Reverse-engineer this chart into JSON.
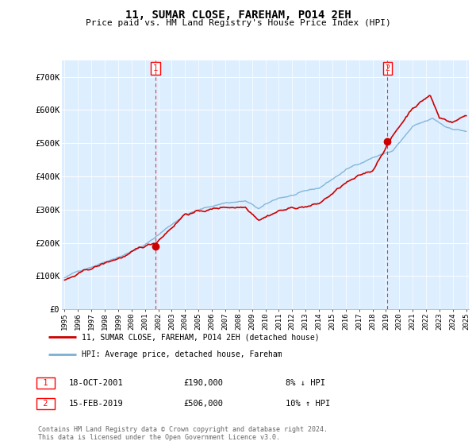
{
  "title": "11, SUMAR CLOSE, FAREHAM, PO14 2EH",
  "subtitle": "Price paid vs. HM Land Registry's House Price Index (HPI)",
  "legend_line1": "11, SUMAR CLOSE, FAREHAM, PO14 2EH (detached house)",
  "legend_line2": "HPI: Average price, detached house, Fareham",
  "annotation1_label": "1",
  "annotation1_date": "18-OCT-2001",
  "annotation1_price": "£190,000",
  "annotation1_hpi": "8% ↓ HPI",
  "annotation2_label": "2",
  "annotation2_date": "15-FEB-2019",
  "annotation2_price": "£506,000",
  "annotation2_hpi": "10% ↑ HPI",
  "footer": "Contains HM Land Registry data © Crown copyright and database right 2024.\nThis data is licensed under the Open Government Licence v3.0.",
  "red_color": "#cc0000",
  "blue_color": "#7ab0d4",
  "fill_color": "#ddeeff",
  "dashed_color": "#cc4444",
  "ylim": [
    0,
    750000
  ],
  "yticks": [
    0,
    100000,
    200000,
    300000,
    400000,
    500000,
    600000,
    700000
  ],
  "ytick_labels": [
    "£0",
    "£100K",
    "£200K",
    "£300K",
    "£400K",
    "£500K",
    "£600K",
    "£700K"
  ],
  "sale1_x": 2001.8,
  "sale1_y": 190000,
  "sale2_x": 2019.12,
  "sale2_y": 506000,
  "vline1_x": 2001.8,
  "vline2_x": 2019.12,
  "xlim_left": 1994.8,
  "xlim_right": 2025.2
}
